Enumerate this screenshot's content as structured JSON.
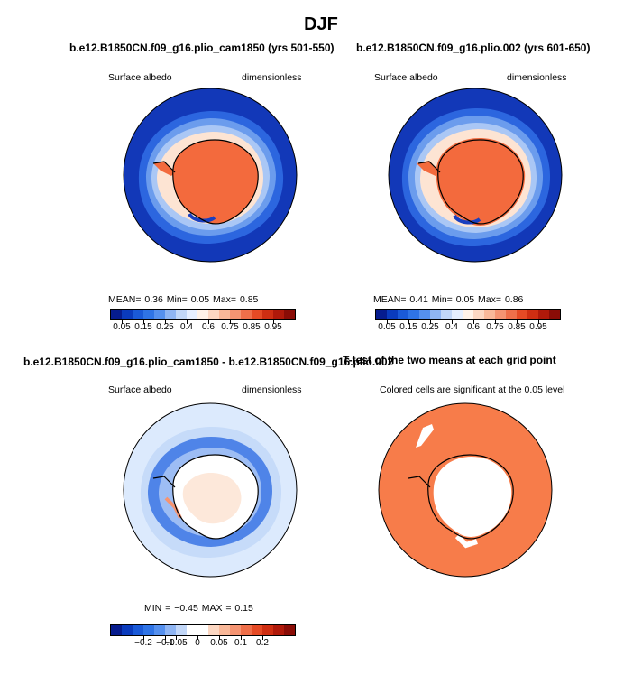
{
  "figure": {
    "title": "DJF"
  },
  "panels": [
    {
      "title": "b.e12.B1850CN.f09_g16.plio_cam1850 (yrs 501-550)",
      "left_label": "Surface albedo",
      "right_label": "dimensionless",
      "stats": "MEAN=    0.36   Min=     0.05   Max=     0.85"
    },
    {
      "title": "b.e12.B1850CN.f09_g16.plio.002 (yrs 601-650)",
      "left_label": "Surface albedo",
      "right_label": "dimensionless",
      "stats": "MEAN=    0.41   Min=     0.05   Max=     0.86"
    },
    {
      "title": "b.e12.B1850CN.f09_g16.plio_cam1850 - b.e12.B1850CN.f09_g16.plio.002",
      "left_label": "Surface albedo",
      "right_label": "dimensionless",
      "stats": "MIN  =   −0.45  MAX  =     0.15"
    },
    {
      "title": "T-test of the two means at each grid point",
      "subtitle": "Colored cells are significant at the 0.05 level"
    }
  ],
  "colorbars": {
    "albedo": {
      "colors": [
        "#061c8e",
        "#0a3bbd",
        "#1a5ad8",
        "#2f74e6",
        "#5590ee",
        "#8fb5f3",
        "#c2d7f8",
        "#e6efff",
        "#fff2e8",
        "#fcd7c2",
        "#f9b899",
        "#f59472",
        "#ef6f4a",
        "#e54a25",
        "#cf2e12",
        "#b0190a",
        "#8a0c06"
      ],
      "tick_labels": [
        "0.05",
        "0.15",
        "0.25",
        "0.4",
        "0.6",
        "0.75",
        "0.85",
        "0.95"
      ]
    },
    "difference": {
      "colors": [
        "#061c8e",
        "#0a3bbd",
        "#1a5ad8",
        "#2f74e6",
        "#5590ee",
        "#8fb5f3",
        "#c2d7f8",
        "#ffffff",
        "#ffffff",
        "#fcd7c2",
        "#f9b899",
        "#f59472",
        "#ef6f4a",
        "#e54a25",
        "#cf2e12",
        "#b0190a",
        "#8a0c06"
      ],
      "tick_labels": [
        "−0.2",
        "−0.1",
        "−0.05",
        "0",
        "0.05",
        "0.1",
        "0.2"
      ]
    }
  },
  "chart_data": [
    {
      "type": "heatmap",
      "title": "b.e12.B1850CN.f09_g16.plio_cam1850 (yrs 501-550)",
      "variable": "Surface albedo",
      "units": "dimensionless",
      "projection": "polar stereographic, south pole",
      "mean": 0.36,
      "min": 0.05,
      "max": 0.85,
      "colorbar_labels": [
        0.05,
        0.15,
        0.25,
        0.4,
        0.6,
        0.75,
        0.85,
        0.95
      ]
    },
    {
      "type": "heatmap",
      "title": "b.e12.B1850CN.f09_g16.plio.002 (yrs 601-650)",
      "variable": "Surface albedo",
      "units": "dimensionless",
      "projection": "polar stereographic, south pole",
      "mean": 0.41,
      "min": 0.05,
      "max": 0.86,
      "colorbar_labels": [
        0.05,
        0.15,
        0.25,
        0.4,
        0.6,
        0.75,
        0.85,
        0.95
      ]
    },
    {
      "type": "heatmap",
      "title": "b.e12.B1850CN.f09_g16.plio_cam1850 - b.e12.B1850CN.f09_g16.plio.002",
      "variable": "Surface albedo",
      "units": "dimensionless",
      "projection": "polar stereographic, south pole",
      "min": -0.45,
      "max": 0.15,
      "colorbar_labels": [
        -0.2,
        -0.1,
        -0.05,
        0,
        0.05,
        0.1,
        0.2
      ]
    },
    {
      "type": "heatmap",
      "title": "T-test of the two means at each grid point",
      "subtitle": "Colored cells are significant at the 0.05 level",
      "significance_level": 0.05,
      "significant_color": "#f77c4a"
    }
  ]
}
